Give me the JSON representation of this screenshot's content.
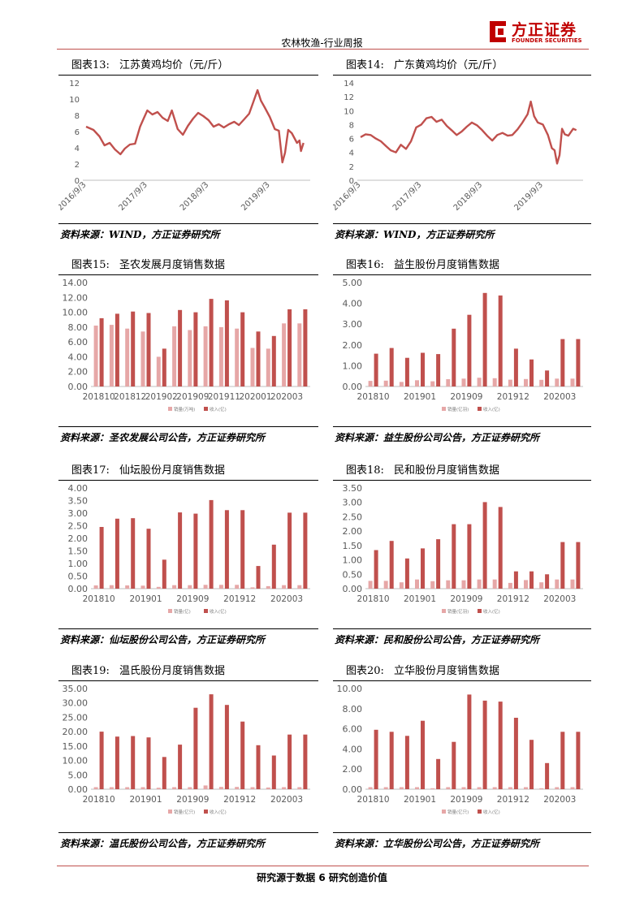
{
  "header": {
    "title": "农林牧渔-行业周报",
    "logo_text": "方正证券",
    "logo_sub": "FOUNDER SECURITIES"
  },
  "footer": {
    "text": "研究源于数据 6 研究创造价值"
  },
  "colors": {
    "line": "#c0504d",
    "bar_dark": "#c0504d",
    "bar_light": "#e6a7a7",
    "axis": "#bfbfbf",
    "tick": "#595959"
  },
  "panels": [
    {
      "num": "图表13:",
      "title": "江苏黄鸡均价（元/斤）",
      "source": "资料来源：WIND，方正证券研究所",
      "chart_data": {
        "type": "line",
        "ylim": [
          0,
          12
        ],
        "yticks": [
          0,
          2,
          4,
          6,
          8,
          10,
          12
        ],
        "ydecimals": 0,
        "x_range": [
          "2016-09-01",
          "2020-03-31"
        ],
        "xtick_labels": [
          "2016/9/3",
          "2017/9/3",
          "2018/9/3",
          "2019/9/3"
        ],
        "xtick_dates": [
          "2016-09-03",
          "2017-09-03",
          "2018-09-03",
          "2019-09-03"
        ],
        "points": [
          [
            "2016-09-01",
            6.6
          ],
          [
            "2016-10-15",
            6.2
          ],
          [
            "2016-11-20",
            5.4
          ],
          [
            "2016-12-20",
            4.3
          ],
          [
            "2017-01-20",
            4.6
          ],
          [
            "2017-02-20",
            3.8
          ],
          [
            "2017-03-25",
            3.2
          ],
          [
            "2017-04-20",
            3.9
          ],
          [
            "2017-05-20",
            4.4
          ],
          [
            "2017-06-20",
            4.5
          ],
          [
            "2017-07-20",
            6.6
          ],
          [
            "2017-08-10",
            7.6
          ],
          [
            "2017-09-01",
            8.6
          ],
          [
            "2017-10-01",
            8.1
          ],
          [
            "2017-11-01",
            8.4
          ],
          [
            "2017-12-01",
            7.7
          ],
          [
            "2018-01-01",
            7.3
          ],
          [
            "2018-01-25",
            8.6
          ],
          [
            "2018-03-01",
            6.3
          ],
          [
            "2018-04-01",
            5.6
          ],
          [
            "2018-05-01",
            6.7
          ],
          [
            "2018-06-01",
            7.6
          ],
          [
            "2018-07-01",
            8.3
          ],
          [
            "2018-08-01",
            7.9
          ],
          [
            "2018-09-01",
            7.4
          ],
          [
            "2018-10-01",
            6.6
          ],
          [
            "2018-11-01",
            6.9
          ],
          [
            "2018-12-01",
            6.5
          ],
          [
            "2019-01-01",
            6.9
          ],
          [
            "2019-02-01",
            7.2
          ],
          [
            "2019-03-01",
            6.8
          ],
          [
            "2019-04-01",
            7.5
          ],
          [
            "2019-05-01",
            8.2
          ],
          [
            "2019-05-25",
            9.6
          ],
          [
            "2019-06-20",
            11.1
          ],
          [
            "2019-07-10",
            9.8
          ],
          [
            "2019-08-01",
            9.0
          ],
          [
            "2019-09-01",
            7.8
          ],
          [
            "2019-10-01",
            6.3
          ],
          [
            "2019-10-25",
            6.1
          ],
          [
            "2019-11-15",
            2.2
          ],
          [
            "2019-12-01",
            3.4
          ],
          [
            "2019-12-20",
            6.2
          ],
          [
            "2020-01-10",
            5.8
          ],
          [
            "2020-02-10",
            4.6
          ],
          [
            "2020-02-25",
            4.9
          ],
          [
            "2020-03-05",
            3.6
          ],
          [
            "2020-03-20",
            4.6
          ]
        ]
      }
    },
    {
      "num": "图表14:",
      "title": "广东黄鸡均价（元/斤）",
      "source": "资料来源：WIND，方正证券研究所",
      "chart_data": {
        "type": "line",
        "ylim": [
          0,
          14
        ],
        "yticks": [
          0,
          2,
          4,
          6,
          8,
          10,
          12,
          14
        ],
        "ydecimals": 0,
        "x_range": [
          "2016-09-01",
          "2020-03-31"
        ],
        "xtick_labels": [
          "2016/9/3",
          "2017/9/3",
          "2018/9/3",
          "2019/9/3"
        ],
        "xtick_dates": [
          "2016-09-03",
          "2017-09-03",
          "2018-09-03",
          "2019-09-03"
        ],
        "points": [
          [
            "2016-09-01",
            6.2
          ],
          [
            "2016-10-01",
            6.6
          ],
          [
            "2016-11-01",
            6.5
          ],
          [
            "2016-12-01",
            6.0
          ],
          [
            "2017-01-01",
            5.6
          ],
          [
            "2017-02-01",
            4.9
          ],
          [
            "2017-03-01",
            4.3
          ],
          [
            "2017-04-01",
            4.0
          ],
          [
            "2017-05-01",
            5.1
          ],
          [
            "2017-06-01",
            4.5
          ],
          [
            "2017-07-01",
            5.6
          ],
          [
            "2017-08-01",
            7.6
          ],
          [
            "2017-09-01",
            8.0
          ],
          [
            "2017-10-01",
            8.9
          ],
          [
            "2017-11-01",
            9.1
          ],
          [
            "2017-12-01",
            8.4
          ],
          [
            "2018-01-01",
            8.7
          ],
          [
            "2018-02-01",
            7.8
          ],
          [
            "2018-03-01",
            7.2
          ],
          [
            "2018-04-01",
            6.5
          ],
          [
            "2018-05-01",
            7.0
          ],
          [
            "2018-06-01",
            7.7
          ],
          [
            "2018-07-01",
            8.3
          ],
          [
            "2018-08-01",
            7.9
          ],
          [
            "2018-09-01",
            7.2
          ],
          [
            "2018-10-01",
            6.4
          ],
          [
            "2018-11-01",
            5.7
          ],
          [
            "2018-12-01",
            6.5
          ],
          [
            "2019-01-01",
            6.8
          ],
          [
            "2019-02-01",
            6.4
          ],
          [
            "2019-03-01",
            6.5
          ],
          [
            "2019-04-01",
            7.3
          ],
          [
            "2019-05-01",
            8.3
          ],
          [
            "2019-06-01",
            9.5
          ],
          [
            "2019-06-20",
            11.3
          ],
          [
            "2019-07-10",
            9.2
          ],
          [
            "2019-08-01",
            8.3
          ],
          [
            "2019-09-01",
            8.0
          ],
          [
            "2019-10-01",
            6.5
          ],
          [
            "2019-10-25",
            4.6
          ],
          [
            "2019-11-10",
            4.3
          ],
          [
            "2019-11-25",
            2.4
          ],
          [
            "2019-12-10",
            3.6
          ],
          [
            "2019-12-25",
            7.4
          ],
          [
            "2020-01-10",
            6.6
          ],
          [
            "2020-02-01",
            6.4
          ],
          [
            "2020-03-01",
            7.4
          ],
          [
            "2020-03-20",
            7.2
          ]
        ]
      }
    },
    {
      "num": "图表15:",
      "title": "圣农发展月度销售数据",
      "source": "资料来源：圣农发展公司公告，方正证券研究所",
      "chart_data": {
        "type": "bar",
        "ylim": [
          0,
          14
        ],
        "yticks": [
          0,
          2,
          4,
          6,
          8,
          10,
          12,
          14
        ],
        "ydecimals": 2,
        "categories": [
          "201810",
          "201811",
          "201812",
          "201901",
          "201902",
          "201903",
          "201904",
          "201909",
          "201910",
          "201911",
          "201912",
          "202001",
          "202002",
          "202003"
        ],
        "xtick_labels": [
          "201810",
          "201812",
          "201902",
          "201909",
          "201911",
          "202001",
          "202003"
        ],
        "xtick_every": 2,
        "series": [
          {
            "name": "销量(万吨)",
            "values": [
              8.2,
              8.3,
              7.8,
              7.4,
              4.0,
              8.1,
              7.6,
              8.1,
              8.0,
              7.8,
              5.2,
              5.1,
              8.5,
              8.5
            ]
          },
          {
            "name": "收入(亿)",
            "values": [
              9.2,
              9.8,
              10.1,
              9.9,
              5.1,
              10.3,
              10.0,
              11.8,
              11.6,
              10.0,
              7.4,
              6.8,
              10.4,
              10.4
            ]
          }
        ]
      }
    },
    {
      "num": "图表16:",
      "title": "益生股份月度销售数据",
      "source": "资料来源：益生股份公司公告，方正证券研究所",
      "chart_data": {
        "type": "bar",
        "ylim": [
          0,
          5
        ],
        "yticks": [
          0,
          1,
          2,
          3,
          4,
          5
        ],
        "ydecimals": 2,
        "categories": [
          "201810",
          "201811",
          "201812",
          "201901",
          "201902",
          "201903",
          "201904",
          "201909",
          "201910",
          "201911",
          "201912",
          "202001",
          "202002",
          "202003"
        ],
        "xtick_labels": [
          "201810",
          "201901",
          "201909",
          "201912",
          "202003"
        ],
        "xtick_every": 3,
        "series": [
          {
            "name": "销量(亿羽)",
            "values": [
              0.27,
              0.28,
              0.22,
              0.3,
              0.25,
              0.35,
              0.38,
              0.42,
              0.4,
              0.33,
              0.36,
              0.32,
              0.38,
              0.38
            ]
          },
          {
            "name": "收入(亿)",
            "values": [
              1.58,
              1.85,
              1.38,
              1.62,
              1.56,
              2.78,
              3.45,
              4.5,
              4.38,
              1.82,
              1.3,
              0.77,
              2.28,
              2.28
            ]
          }
        ]
      }
    },
    {
      "num": "图表17:",
      "title": "仙坛股份月度销售数据",
      "source": "资料来源：仙坛股份公司公告，方正证券研究所",
      "chart_data": {
        "type": "bar",
        "ylim": [
          0,
          4
        ],
        "yticks": [
          0,
          0.5,
          1,
          1.5,
          2,
          2.5,
          3,
          3.5,
          4
        ],
        "ydecimals": 2,
        "categories": [
          "201810",
          "201811",
          "201812",
          "201901",
          "201902",
          "201903",
          "201904",
          "201909",
          "201910",
          "201911",
          "201912",
          "202001",
          "202002",
          "202003"
        ],
        "xtick_labels": [
          "201810",
          "201901",
          "201909",
          "201912",
          "202003"
        ],
        "xtick_every": 3,
        "series": [
          {
            "name": "销量(亿)",
            "values": [
              0.13,
              0.14,
              0.13,
              0.12,
              0.07,
              0.14,
              0.14,
              0.15,
              0.15,
              0.15,
              0.05,
              0.1,
              0.14,
              0.14
            ]
          },
          {
            "name": "收入(亿)",
            "values": [
              2.45,
              2.78,
              2.8,
              2.38,
              1.15,
              3.03,
              2.98,
              3.52,
              3.12,
              3.12,
              0.9,
              1.75,
              3.02,
              3.02
            ]
          }
        ]
      }
    },
    {
      "num": "图表18:",
      "title": "民和股份月度销售数据",
      "source": "资料来源：民和股份公司公告，方正证券研究所",
      "chart_data": {
        "type": "bar",
        "ylim": [
          0,
          3.5
        ],
        "yticks": [
          0,
          0.5,
          1,
          1.5,
          2,
          2.5,
          3,
          3.5
        ],
        "ydecimals": 2,
        "categories": [
          "201810",
          "201811",
          "201812",
          "201901",
          "201902",
          "201903",
          "201904",
          "201909",
          "201910",
          "201911",
          "201912",
          "202001",
          "202002",
          "202003"
        ],
        "xtick_labels": [
          "201810",
          "201901",
          "201909",
          "201912",
          "202003"
        ],
        "xtick_every": 3,
        "series": [
          {
            "name": "销量(亿羽)",
            "values": [
              0.27,
              0.27,
              0.22,
              0.32,
              0.26,
              0.29,
              0.29,
              0.32,
              0.32,
              0.2,
              0.3,
              0.22,
              0.32,
              0.32
            ]
          },
          {
            "name": "收入(亿)",
            "values": [
              1.34,
              1.66,
              1.05,
              1.4,
              1.72,
              2.24,
              2.24,
              3.01,
              2.84,
              0.6,
              0.6,
              0.5,
              1.62,
              1.62
            ]
          }
        ]
      }
    },
    {
      "num": "图表19:",
      "title": "温氏股份月度销售数据",
      "source": "资料来源：温氏股份公司公告，方正证券研究所",
      "chart_data": {
        "type": "bar",
        "ylim": [
          0,
          35
        ],
        "yticks": [
          0,
          5,
          10,
          15,
          20,
          25,
          30,
          35
        ],
        "ydecimals": 2,
        "categories": [
          "201810",
          "201811",
          "201812",
          "201901",
          "201902",
          "201903",
          "201904",
          "201909",
          "201910",
          "201911",
          "201912",
          "202001",
          "202002",
          "202003"
        ],
        "xtick_labels": [
          "201810",
          "201901",
          "201909",
          "201912",
          "202003"
        ],
        "xtick_every": 3,
        "series": [
          {
            "name": "销量(亿只)",
            "values": [
              0.7,
              0.7,
              0.7,
              0.7,
              0.5,
              0.7,
              0.7,
              1.3,
              0.8,
              0.8,
              0.7,
              0.6,
              0.7,
              0.7
            ]
          },
          {
            "name": "收入(亿)",
            "values": [
              20.0,
              18.3,
              18.5,
              18.0,
              11.2,
              15.5,
              28.3,
              33.0,
              29.3,
              23.5,
              15.3,
              11.7,
              19.0,
              19.0
            ]
          }
        ]
      }
    },
    {
      "num": "图表20:",
      "title": "立华股份月度销售数据",
      "source": "资料来源：立华股份公司公告，方正证券研究所",
      "chart_data": {
        "type": "bar",
        "ylim": [
          0,
          10
        ],
        "yticks": [
          0,
          2,
          4,
          6,
          8,
          10
        ],
        "ydecimals": 2,
        "categories": [
          "201810",
          "201811",
          "201812",
          "201901",
          "201902",
          "201903",
          "201904",
          "201909",
          "201910",
          "201911",
          "201912",
          "202001",
          "202002",
          "202003"
        ],
        "xtick_labels": [
          "201810",
          "201901",
          "201909",
          "201912",
          "202003"
        ],
        "xtick_every": 3,
        "series": [
          {
            "name": "销量(亿只)",
            "values": [
              0.2,
              0.2,
              0.2,
              0.2,
              0.1,
              0.2,
              0.2,
              0.2,
              0.2,
              0.2,
              0.2,
              0.1,
              0.2,
              0.2
            ]
          },
          {
            "name": "收入(亿)",
            "values": [
              5.9,
              5.7,
              5.3,
              6.8,
              3.0,
              4.7,
              9.4,
              8.8,
              8.7,
              7.1,
              4.9,
              2.6,
              5.7,
              5.7
            ]
          }
        ]
      }
    }
  ]
}
